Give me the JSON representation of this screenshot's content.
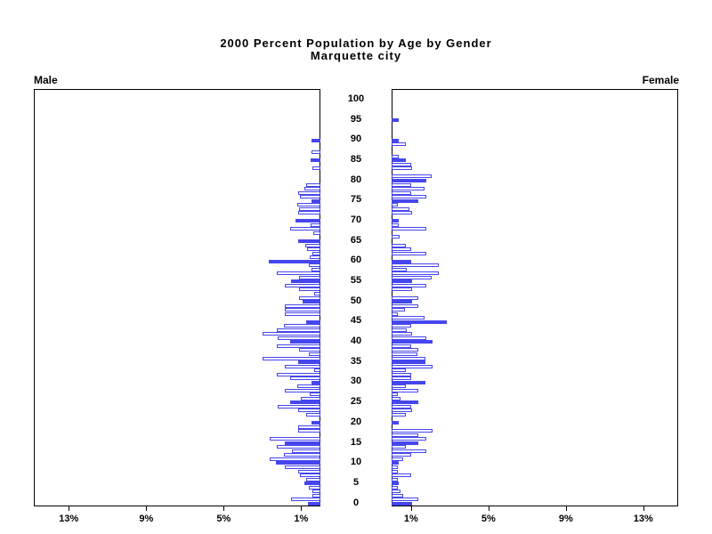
{
  "chart_data": {
    "type": "bar",
    "subtype": "population-pyramid",
    "title": "2000 Percent Population by Age by Gender",
    "subtitle": "Marquette city",
    "left_series_label": "Male",
    "right_series_label": "Female",
    "age_axis": {
      "min": 0,
      "max": 100,
      "tick_interval": 5,
      "tick_labels": [
        "0",
        "5",
        "10",
        "15",
        "20",
        "25",
        "30",
        "35",
        "40",
        "45",
        "50",
        "55",
        "60",
        "65",
        "70",
        "75",
        "80",
        "85",
        "90",
        "95",
        "100"
      ]
    },
    "pct_axis": {
      "min": 0,
      "max": 14.8,
      "unit": "percent",
      "left_tick_labels": [
        "13%",
        "9%",
        "5%",
        "1%"
      ],
      "left_tick_values": [
        13,
        9,
        5,
        1
      ],
      "right_tick_labels": [
        "1%",
        "5%",
        "9%",
        "13%"
      ],
      "right_tick_values": [
        1,
        5,
        9,
        13
      ]
    },
    "highlight_rule": "bars for ages divisible by 5 are solid blue; all other ages are hollow white with blue outline",
    "colors": {
      "bar_fill_highlight": "#4646ee",
      "bar_outline": "#4646ee",
      "bar_fill_normal": "#ffffff",
      "axis": "#000000",
      "text": "#000000",
      "background": "#ffffff"
    },
    "legend_position": "none",
    "grid": false,
    "series": [
      {
        "name": "Male",
        "ages": "0-100, index equals age in years",
        "values": [
          0.65,
          1.5,
          0.4,
          0.4,
          0.6,
          0.85,
          0.75,
          1.05,
          1.15,
          1.85,
          2.3,
          2.6,
          1.9,
          1.45,
          2.25,
          1.85,
          2.6,
          0,
          1.15,
          1.15,
          0.45,
          0,
          0.75,
          1.15,
          2.2,
          1.55,
          1.0,
          0.55,
          1.85,
          1.2,
          0.45,
          1.55,
          2.25,
          0.3,
          1.85,
          1.15,
          3.0,
          0.6,
          1.1,
          2.25,
          1.55,
          2.2,
          3.0,
          2.25,
          1.9,
          0.75,
          0,
          1.85,
          1.85,
          1.85,
          0.9,
          1.1,
          0.3,
          1.1,
          1.85,
          1.5,
          1.1,
          2.25,
          0.45,
          0.6,
          2.65,
          0.55,
          0.4,
          0.7,
          0.8,
          1.15,
          0,
          0.35,
          1.55,
          0.5,
          1.3,
          0,
          1.15,
          1.1,
          1.2,
          0.45,
          1.05,
          1.15,
          0.85,
          0.75,
          0,
          0,
          0,
          0.4,
          0,
          0.5,
          0,
          0.45,
          0,
          0,
          0.45,
          0,
          0,
          0,
          0,
          0,
          0,
          0,
          0,
          0,
          0
        ]
      },
      {
        "name": "Female",
        "ages": "0-100, index equals age in years",
        "values": [
          1.05,
          1.4,
          0.6,
          0.45,
          0.3,
          0.38,
          0.3,
          1.0,
          0.3,
          0.3,
          0.38,
          0.6,
          1.03,
          1.8,
          0.75,
          1.38,
          1.8,
          1.38,
          2.1,
          0,
          0.38,
          0,
          0.75,
          1.05,
          1.0,
          1.38,
          0.45,
          0.3,
          1.38,
          0.75,
          1.75,
          1.03,
          1.0,
          0.75,
          2.1,
          1.75,
          1.75,
          1.33,
          1.4,
          1.03,
          2.1,
          1.8,
          1.04,
          0.8,
          1.0,
          2.85,
          1.7,
          0.3,
          0.7,
          1.4,
          1.04,
          1.38,
          0,
          1.04,
          1.8,
          1.04,
          2.07,
          2.45,
          0.8,
          2.45,
          1.03,
          0,
          1.8,
          1.03,
          0.75,
          0,
          0.4,
          0,
          1.8,
          0.38,
          0.38,
          0,
          1.04,
          0.92,
          0.3,
          1.4,
          1.8,
          1.03,
          1.7,
          1.03,
          1.8,
          2.07,
          0,
          1.04,
          1.0,
          0.75,
          0.35,
          0,
          0,
          0.75,
          0.35,
          0,
          0,
          0,
          0,
          0.35,
          0,
          0,
          0,
          0,
          0
        ]
      }
    ]
  }
}
